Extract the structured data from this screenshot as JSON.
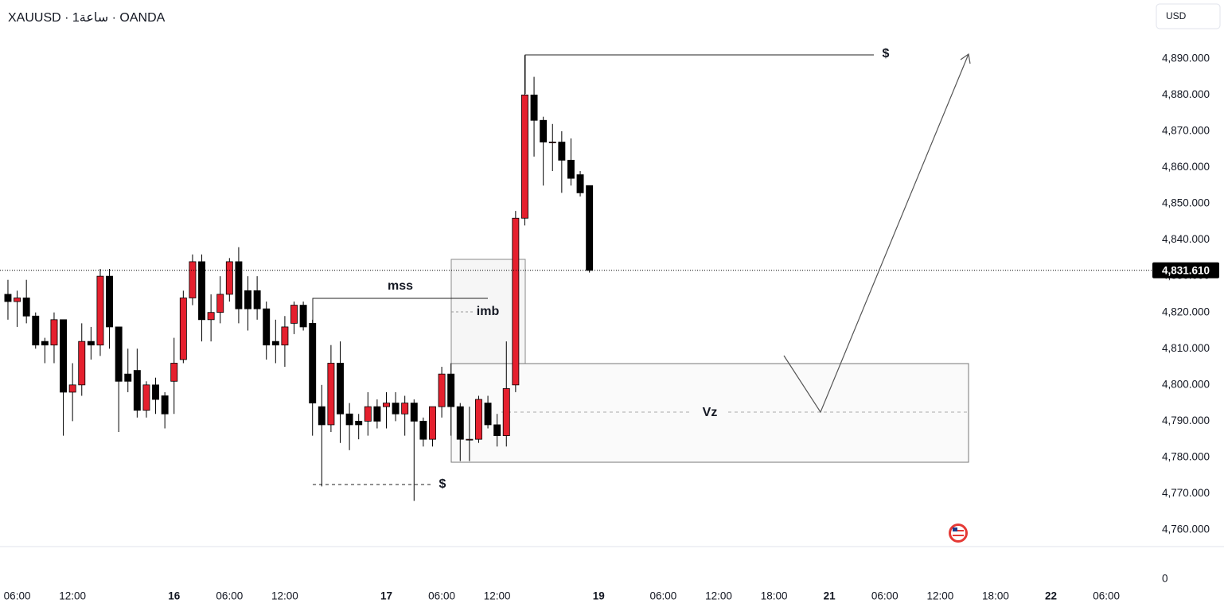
{
  "chart_data": {
    "type": "candlestick",
    "title": "XAUUSD · 1ساعة · OANDA",
    "currency": "USD",
    "up_color": "#e5202e",
    "down_color": "#000000",
    "open": [
      4825,
      4823,
      4824,
      4819,
      4812,
      4811,
      4818,
      4798,
      4800,
      4812,
      4811,
      4830,
      4816,
      4803,
      4804,
      4793,
      4800,
      4797,
      4801,
      4807,
      4824,
      4834,
      4818,
      4820,
      4825,
      4834,
      4826,
      4826,
      4821,
      4812,
      4811,
      4817,
      4822,
      4817,
      4794,
      4789,
      4806,
      4792,
      4790,
      4790,
      4794,
      4794,
      4795,
      4792,
      4795,
      4790,
      4785,
      4794,
      4803,
      4794,
      4785,
      4785,
      4795,
      4789,
      4786,
      4800,
      4846,
      4880,
      4873,
      4867,
      4867,
      4862,
      4858,
      4855
    ],
    "high": [
      4829,
      4826,
      4829,
      4820,
      4813,
      4820,
      4818,
      4806,
      4817,
      4816,
      4832,
      4832,
      4816,
      4810,
      4810,
      4801,
      4802,
      4798,
      4813,
      4826,
      4836,
      4836,
      4825,
      4830,
      4835,
      4838,
      4830,
      4830,
      4823,
      4818,
      4819,
      4823,
      4823,
      4818,
      4800,
      4811,
      4812,
      4795,
      4792,
      4798,
      4796,
      4798,
      4798,
      4797,
      4796,
      4791,
      4794,
      4805,
      4806,
      4795,
      4794,
      4797,
      4797,
      4792,
      4812,
      4848,
      4891,
      4885,
      4874,
      4872,
      4870,
      4868,
      4859,
      4855
    ],
    "low": [
      4818,
      4816,
      4817,
      4810,
      4806,
      4806,
      4786,
      4790,
      4797,
      4807,
      4808,
      4810,
      4787,
      4798,
      4791,
      4791,
      4792,
      4788,
      4792,
      4806,
      4822,
      4812,
      4812,
      4817,
      4823,
      4817,
      4815,
      4818,
      4807,
      4806,
      4805,
      4814,
      4815,
      4786,
      4772,
      4787,
      4784,
      4782,
      4785,
      4786,
      4788,
      4788,
      4790,
      4786,
      4768,
      4783,
      4783,
      4791,
      4786,
      4779,
      4779,
      4784,
      4788,
      4783,
      4783,
      4798,
      4844,
      4863,
      4855,
      4859,
      4853,
      4855,
      4852,
      4831
    ],
    "close": [
      4823,
      4824,
      4819,
      4811,
      4811,
      4818,
      4798,
      4800,
      4812,
      4811,
      4830,
      4816,
      4801,
      4801,
      4793,
      4800,
      4796,
      4792,
      4806,
      4824,
      4834,
      4818,
      4820,
      4825,
      4834,
      4821,
      4821,
      4821,
      4811,
      4811,
      4816,
      4822,
      4816,
      4795,
      4789,
      4806,
      4792,
      4789,
      4789,
      4794,
      4790,
      4795,
      4792,
      4795,
      4790,
      4785,
      4794,
      4803,
      4794,
      4785,
      4785,
      4796,
      4789,
      4786,
      4799,
      4846,
      4880,
      4873,
      4867,
      4867,
      4862,
      4857,
      4853,
      4831.61
    ],
    "xlim": [
      -0.86,
      123.3
    ],
    "xticks": [
      {
        "value": 1,
        "label": "06:00"
      },
      {
        "value": 7,
        "label": "12:00"
      },
      {
        "value": 18,
        "label": "16"
      },
      {
        "value": 24,
        "label": "06:00"
      },
      {
        "value": 30,
        "label": "12:00"
      },
      {
        "value": 41,
        "label": "17"
      },
      {
        "value": 47,
        "label": "06:00"
      },
      {
        "value": 53,
        "label": "12:00"
      },
      {
        "value": 64,
        "label": "19"
      },
      {
        "value": 71,
        "label": "06:00"
      },
      {
        "value": 77,
        "label": "12:00"
      },
      {
        "value": 83,
        "label": "18:00"
      },
      {
        "value": 89,
        "label": "21"
      },
      {
        "value": 95,
        "label": "06:00"
      },
      {
        "value": 101,
        "label": "12:00"
      },
      {
        "value": 107,
        "label": "18:00"
      },
      {
        "value": 113,
        "label": "22"
      },
      {
        "value": 119,
        "label": "06:00"
      }
    ],
    "ylim": [
      4755.4,
      4906.2
    ],
    "yticks": [
      {
        "value": 4760,
        "label": "4,760.000"
      },
      {
        "value": 4770,
        "label": "4,770.000"
      },
      {
        "value": 4780,
        "label": "4,780.000"
      },
      {
        "value": 4790,
        "label": "4,790.000"
      },
      {
        "value": 4800,
        "label": "4,800.000"
      },
      {
        "value": 4810,
        "label": "4,810.000"
      },
      {
        "value": 4820,
        "label": "4,820.000"
      },
      {
        "value": 4830,
        "label": "4,830.000"
      },
      {
        "value": 4840,
        "label": "4,840.000"
      },
      {
        "value": 4850,
        "label": "4,850.000"
      },
      {
        "value": 4860,
        "label": "4,860.000"
      },
      {
        "value": 4870,
        "label": "4,870.000"
      },
      {
        "value": 4880,
        "label": "4,880.000"
      },
      {
        "value": 4890,
        "label": "4,890.000"
      }
    ],
    "last_price": {
      "value": 4831.61,
      "label": "4,831.610"
    },
    "volume_yticks": [
      0
    ],
    "annotations": [
      "$",
      "mss",
      "imb",
      "$",
      "Vz"
    ]
  }
}
